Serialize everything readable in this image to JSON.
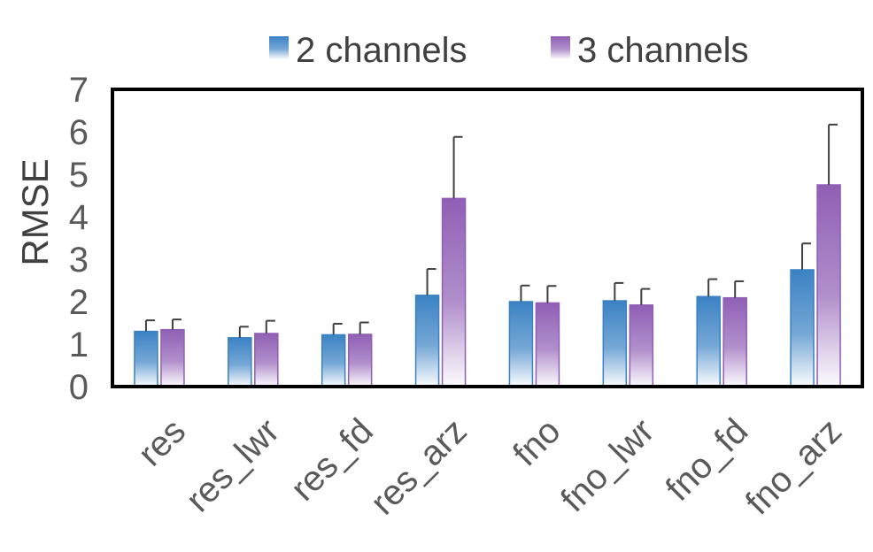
{
  "chart_data": {
    "type": "bar",
    "title": "",
    "xlabel": "",
    "ylabel": "RMSE",
    "ylim": [
      0,
      7
    ],
    "yticks": [
      "0",
      "1",
      "2",
      "3",
      "4",
      "5",
      "6",
      "7"
    ],
    "categories": [
      "res",
      "res_lwr",
      "res_fd",
      "res_arz",
      "fno",
      "fno_lwr",
      "fno_fd",
      "fno_arz"
    ],
    "series": [
      {
        "name": "2 channels",
        "color": "#3b82c4",
        "values": [
          1.3,
          1.15,
          1.22,
          2.15,
          2.0,
          2.02,
          2.12,
          2.75
        ],
        "errors": [
          0.26,
          0.26,
          0.26,
          0.62,
          0.38,
          0.42,
          0.41,
          0.62
        ]
      },
      {
        "name": "3 channels",
        "color": "#8f5fb5",
        "values": [
          1.34,
          1.25,
          1.23,
          4.43,
          1.97,
          1.92,
          2.09,
          4.75
        ],
        "errors": [
          0.24,
          0.3,
          0.28,
          1.45,
          0.4,
          0.38,
          0.39,
          1.42
        ]
      }
    ],
    "grid": false,
    "legend_position": "top"
  }
}
